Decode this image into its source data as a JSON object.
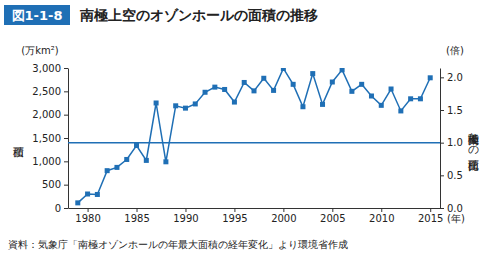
{
  "chart_data": {
    "type": "line",
    "figure_number": "図1-1-8",
    "title": "南極上空のオゾンホールの面積の推移",
    "y_label": "面積",
    "y_unit": "(万km²)",
    "y2_label": "南極大陸との面積比",
    "y2_unit": "(倍)",
    "x_unit": "(年)",
    "source": "資料：気象庁「南極オゾンホールの年最大面積の経年変化」より環境省作成",
    "x": [
      1979,
      1980,
      1981,
      1982,
      1983,
      1984,
      1985,
      1986,
      1987,
      1988,
      1989,
      1990,
      1991,
      1992,
      1993,
      1994,
      1995,
      1996,
      1997,
      1998,
      1999,
      2000,
      2001,
      2002,
      2003,
      2004,
      2005,
      2006,
      2007,
      2008,
      2009,
      2010,
      2011,
      2012,
      2013,
      2014,
      2015
    ],
    "values": [
      110,
      300,
      290,
      800,
      870,
      1040,
      1340,
      1020,
      2250,
      990,
      2190,
      2140,
      2230,
      2480,
      2590,
      2540,
      2270,
      2690,
      2510,
      2780,
      2520,
      2990,
      2650,
      2170,
      2880,
      2220,
      2700,
      2960,
      2500,
      2650,
      2400,
      2200,
      2550,
      2080,
      2340,
      2340,
      2790
    ],
    "color": "#1f6fb5",
    "marker": "square",
    "xlim": [
      1978,
      2016
    ],
    "xticks": [
      1980,
      1985,
      1990,
      1995,
      2000,
      2005,
      2010,
      2015
    ],
    "ylim": [
      0,
      3000
    ],
    "yticks": [
      0,
      500,
      {
        "value": 1000,
        "label": "1,000"
      },
      {
        "value": 1500,
        "label": "1,500"
      },
      {
        "value": 2000,
        "label": "2,000"
      },
      {
        "value": 2500,
        "label": "2,500"
      },
      {
        "value": 3000,
        "label": "3,000"
      }
    ],
    "y2lim": [
      0,
      2.1429
    ],
    "y2ticks": [
      {
        "value": 0,
        "label": "0.0"
      },
      {
        "value": 0.5,
        "label": "0.5"
      },
      {
        "value": 1,
        "label": "1.0"
      },
      {
        "value": 1.5,
        "label": "1.5"
      },
      {
        "value": 2,
        "label": "2.0"
      }
    ],
    "hlines": [
      {
        "value": 1,
        "axis": "y2"
      }
    ]
  }
}
